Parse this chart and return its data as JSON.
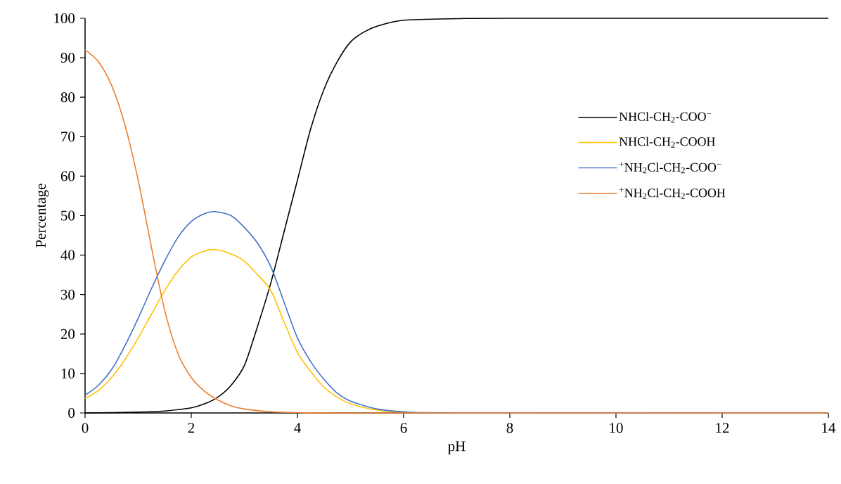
{
  "chart_data": {
    "type": "line",
    "xlabel": "pH",
    "ylabel": "Percentage",
    "xlim": [
      0,
      14
    ],
    "xticks": [
      0,
      2,
      4,
      6,
      8,
      10,
      12,
      14
    ],
    "ylim": [
      0,
      100
    ],
    "yticks": [
      0,
      10,
      20,
      30,
      40,
      50,
      60,
      70,
      80,
      90,
      100
    ],
    "grid": false,
    "legend": "right",
    "marker": "none",
    "line_style": "solid",
    "series": [
      {
        "name": "NHCl-CH$_{2}$-COO$^{−}$",
        "color": "#000000",
        "x": [
          0,
          1,
          1.5,
          2,
          2.25,
          2.5,
          2.75,
          3,
          3.25,
          3.5,
          3.75,
          4,
          4.25,
          4.5,
          4.75,
          5,
          5.25,
          5.5,
          6,
          7,
          8,
          14
        ],
        "values": [
          0,
          0.2,
          0.5,
          1.3,
          2.3,
          4,
          7,
          12,
          22,
          33,
          46,
          59,
          72,
          82,
          89,
          94,
          96.5,
          98,
          99.5,
          99.9,
          100,
          100
        ]
      },
      {
        "name": "NHCl-CH$_{2}$-COOH",
        "color": "#ffc000",
        "x": [
          0,
          0.25,
          0.5,
          0.75,
          1,
          1.25,
          1.5,
          1.75,
          2,
          2.25,
          2.45,
          2.75,
          3,
          3.25,
          3.5,
          3.75,
          4,
          4.25,
          4.5,
          4.75,
          5,
          5.5,
          6,
          7,
          14
        ],
        "values": [
          3.7,
          5.7,
          9,
          13.5,
          19,
          25,
          31,
          36,
          39.5,
          41,
          41.4,
          40.3,
          38.5,
          35,
          31,
          23,
          15.3,
          10.5,
          6.5,
          4,
          2.3,
          0.7,
          0.2,
          0,
          0
        ]
      },
      {
        "name": "$^{+}$NH$_{2}$Cl-CH$_{2}$-COO$^{−}$",
        "color": "#4472c4",
        "x": [
          0,
          0.25,
          0.5,
          0.75,
          1,
          1.25,
          1.5,
          1.75,
          2,
          2.25,
          2.45,
          2.75,
          3,
          3.25,
          3.5,
          3.75,
          4,
          4.25,
          4.5,
          4.75,
          5,
          5.5,
          6,
          7,
          14
        ],
        "values": [
          4.5,
          7,
          11,
          17,
          24,
          31.5,
          38.5,
          44.5,
          48.5,
          50.5,
          51,
          50,
          47,
          43,
          37,
          28,
          19,
          13,
          8.5,
          5,
          3,
          1,
          0.3,
          0,
          0
        ]
      },
      {
        "name": "$^{+}$NH$_{2}$Cl-CH$_{2}$-COOH",
        "color": "#ed7d31",
        "x": [
          0,
          0.25,
          0.5,
          0.75,
          1,
          1.25,
          1.5,
          1.75,
          2,
          2.25,
          2.5,
          2.75,
          3,
          3.5,
          4,
          5,
          14
        ],
        "values": [
          92,
          89,
          83,
          73,
          59,
          42,
          26,
          15,
          9,
          5.5,
          3.3,
          1.8,
          1,
          0.3,
          0.1,
          0,
          0
        ]
      }
    ]
  }
}
